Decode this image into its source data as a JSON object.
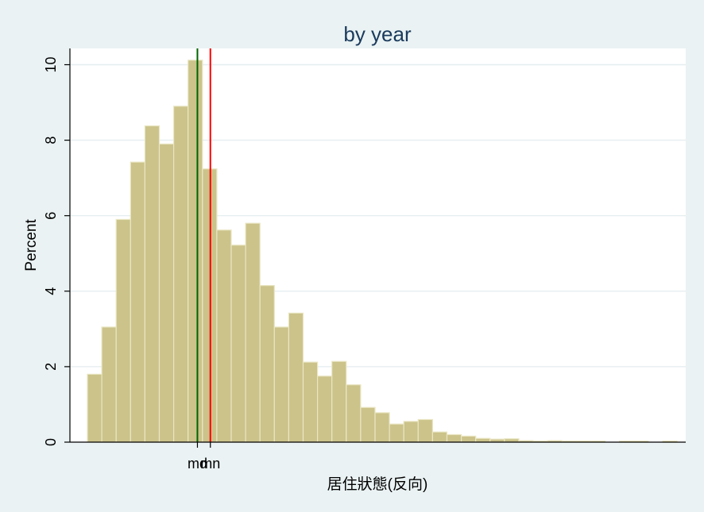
{
  "chart_data": {
    "type": "bar",
    "title": "by year",
    "xlabel": "居住狀態(反向)",
    "ylabel": "Percent",
    "ylim": [
      0,
      10.4
    ],
    "yticks": [
      0,
      2,
      4,
      6,
      8,
      10
    ],
    "grid": true,
    "bins": 41,
    "values": [
      1.8,
      3.05,
      5.9,
      7.42,
      8.38,
      7.9,
      8.9,
      10.12,
      7.24,
      5.62,
      5.22,
      5.8,
      4.15,
      3.05,
      3.42,
      2.12,
      1.75,
      2.14,
      1.52,
      0.92,
      0.78,
      0.48,
      0.55,
      0.6,
      0.27,
      0.2,
      0.16,
      0.1,
      0.08,
      0.09,
      0.04,
      0.03,
      0.04,
      0.03,
      0.03,
      0.03,
      0.0,
      0.03,
      0.03,
      0.0,
      0.03
    ],
    "reference_lines": [
      {
        "label": "md",
        "position_bin": 7.65,
        "color": "#006400"
      },
      {
        "label": "mn",
        "position_bin": 8.55,
        "color": "#ff0000"
      }
    ]
  }
}
